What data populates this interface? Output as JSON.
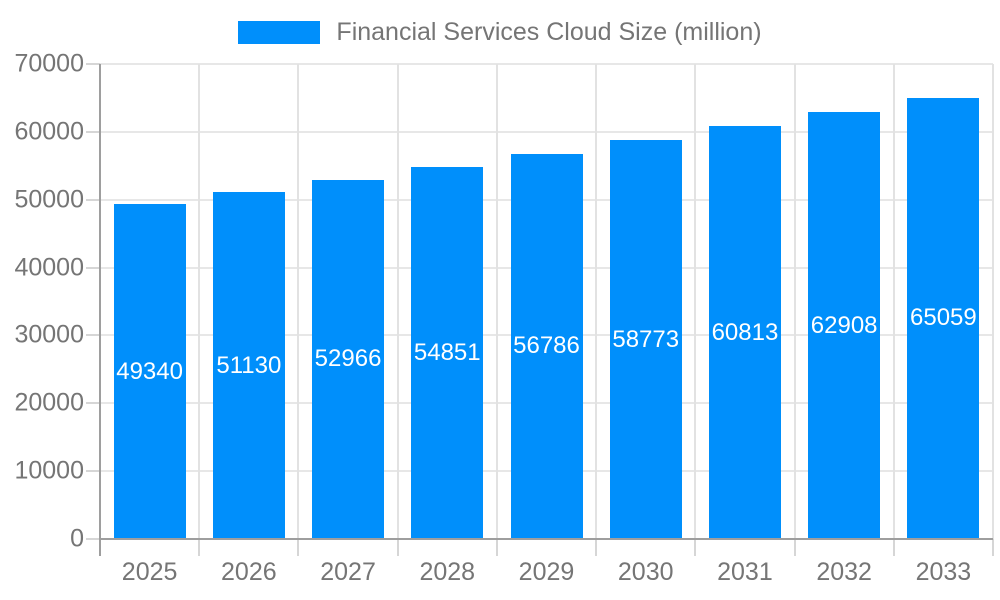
{
  "legend": {
    "label": "Financial Services Cloud Size (million)"
  },
  "colors": {
    "bar": "#008FFB",
    "bar_label": "#ffffff",
    "legend_text": "#757575",
    "axis_text": "#757575",
    "grid_horizontal": "#e7e7e7",
    "grid_vertical": "#e2e2e2",
    "axis_line": "#9e9e9e",
    "tick": "#d6d6d6",
    "background": "#ffffff"
  },
  "chart_data": {
    "type": "bar",
    "title": "Financial Services Cloud Size (million)",
    "categories": [
      "2025",
      "2026",
      "2027",
      "2028",
      "2029",
      "2030",
      "2031",
      "2032",
      "2033"
    ],
    "values": [
      49340,
      51130,
      52966,
      54851,
      56786,
      58773,
      60813,
      62908,
      65059
    ],
    "data_labels": [
      "49340",
      "51130",
      "52966",
      "54851",
      "56786",
      "58773",
      "60813",
      "62908",
      "65059"
    ],
    "xlabel": "",
    "ylabel": "",
    "ylim": [
      0,
      70000
    ],
    "ytick_interval": 10000,
    "ytick_labels": [
      "0",
      "10000",
      "20000",
      "30000",
      "40000",
      "50000",
      "60000",
      "70000"
    ],
    "grid": true,
    "legend_position": "top",
    "data_label_position": "inside-center"
  }
}
